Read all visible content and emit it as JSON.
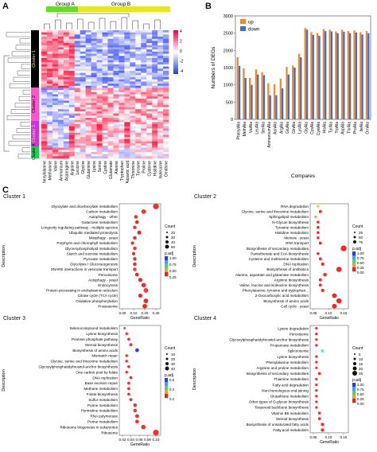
{
  "panels": {
    "a": "A",
    "b": "B",
    "c": "C"
  },
  "heatmap": {
    "group_a": "Group A",
    "group_b": "Group B",
    "clusters": [
      "Cluster 1",
      "Cluster 2",
      "Cluster 3",
      "Cluster 4"
    ],
    "scale_ticks": [
      "4",
      "2",
      "0",
      "-2",
      "-4"
    ],
    "samples": [
      "Phenylalanine",
      "Methionine",
      "Valine",
      "Ammonium",
      "Asparagine",
      "Arginine",
      "Leucine",
      "Glycine",
      "Glutamine",
      "Lysine",
      "Serine",
      "Cystine",
      "Glutamate",
      "Alanine",
      "Tryptophan",
      "Aspartic acid",
      "Threonine",
      "Tyrosine",
      "Proline",
      "Cysteine",
      "Histidine",
      "Isoleucine",
      "Ornithine"
    ]
  },
  "chart_data": [
    {
      "type": "bar",
      "title": "",
      "xlabel": "Compares",
      "ylabel": "Numbers of DEGs",
      "ylim": [
        0,
        3000
      ],
      "yticks": [
        0,
        500,
        1000,
        1500,
        2000,
        2500,
        3000
      ],
      "legend_position": "top-right",
      "categories": [
        "PhenylAla",
        "MethAla",
        "ValAla",
        "LeuAla",
        "SerAla",
        "AmmoniumAla",
        "AsnAla",
        "ArgAla",
        "GluAla",
        "GlnAla",
        "LysAla",
        "GlyAla",
        "CysAla",
        "CystAla",
        "HisAla",
        "TyrAla",
        "TrpAla",
        "AspAla",
        "ThrAla",
        "ProAla",
        "IleAla",
        "OrnAla"
      ],
      "series": [
        {
          "name": "up",
          "color": "#f08a2e",
          "values": [
            1800,
            1480,
            1200,
            1450,
            1370,
            1050,
            1020,
            1180,
            1520,
            1560,
            1900,
            2650,
            2530,
            2500,
            2620,
            2600,
            2550,
            2600,
            2560,
            2580,
            2530,
            2560
          ]
        },
        {
          "name": "down",
          "color": "#3b6fd6",
          "values": [
            1550,
            1200,
            1000,
            1300,
            1280,
            700,
            700,
            900,
            1300,
            1500,
            1800,
            2600,
            2450,
            2420,
            2560,
            2550,
            2500,
            2540,
            2500,
            2520,
            2460,
            2500
          ]
        }
      ]
    },
    {
      "type": "scatter",
      "title": "Cluster 1",
      "xlabel": "GeneRatio",
      "ylabel": "Description",
      "xticks": [
        "0.00",
        "0.10",
        "0.20",
        "0.30"
      ],
      "size_legend": {
        "title": "Count",
        "values": [
          "20",
          "30",
          "40",
          "50"
        ]
      },
      "color_legend": {
        "title": "p.adj",
        "values": [
          "1.00",
          "0.75",
          "0.50",
          "0.25"
        ]
      },
      "terms": [
        "Glyoxylate and dicarboxylate metabolism",
        "Carbon metabolism",
        "Autophagy - other",
        "Galactose metabolism",
        "Longevity regulating pathway - multiple species",
        "Ubiquitin mediated proteolysis",
        "Mitophagy - yeast",
        "Porphyrin and chlorophyll metabolism",
        "Glycerophospholipid metabolism",
        "Starch and sucrose metabolism",
        "Pyruvate metabolism",
        "Glycolysis / Gluconeogenesis",
        "SNARE interactions in vesicular transport",
        "Peroxisome",
        "Autophagy - yeast",
        "Endocytosis",
        "Protein processing in endoplasmic reticulum",
        "Citrate cycle (TCA cycle)",
        "Oxidative phosphorylation",
        "Proteasome"
      ],
      "gene_ratio": [
        0.3,
        0.19,
        0.12,
        0.13,
        0.11,
        0.15,
        0.11,
        0.09,
        0.11,
        0.1,
        0.11,
        0.11,
        0.11,
        0.13,
        0.16,
        0.19,
        0.21,
        0.16,
        0.21,
        0.2
      ]
    },
    {
      "type": "scatter",
      "title": "Cluster 2",
      "xlabel": "GeneRatio",
      "ylabel": "Description",
      "xticks": [
        "0.05",
        "0.10",
        "0.15"
      ],
      "size_legend": {
        "title": "Count",
        "values": [
          "25",
          "50",
          "75"
        ]
      },
      "color_legend": {
        "title": "p.adj",
        "values": [
          "1.00",
          "0.75",
          "0.50",
          "0.25",
          "0.00"
        ]
      },
      "terms": [
        "RNA degradation",
        "Glycine, serine and threonine metabolism",
        "Sphingolipid metabolism",
        "N-Glycan biosynthesis",
        "Tyrosine metabolism",
        "Histidine metabolism",
        "Meiosis - yeast",
        "RNA transport",
        "Biosynthesis of secondary metabolites",
        "Pantothenate and CoA biosynthesis",
        "Cysteine and methionine metabolism",
        "DNA replication",
        "Biosynthesis of antibiotics",
        "Alanine, aspartate and glutamate metabolism",
        "Arginine biosynthesis",
        "Valine, leucine and isoleucine biosynthesis",
        "Phenylalanine, tyrosine and tryptophan...",
        "2-Oxocarboxylic acid metabolism",
        "Biosynthesis of amino acids",
        "Cell cycle - yeast"
      ],
      "gene_ratio": [
        0.07,
        0.08,
        0.06,
        0.07,
        0.07,
        0.07,
        0.07,
        0.08,
        0.18,
        0.07,
        0.08,
        0.09,
        0.16,
        0.1,
        0.08,
        0.08,
        0.09,
        0.14,
        0.16,
        0.14
      ]
    },
    {
      "type": "scatter",
      "title": "Cluster 3",
      "xlabel": "GeneRatio",
      "ylabel": "Description",
      "xticks": [
        "0.02",
        "0.04",
        "0.06",
        "0.08",
        "0.10"
      ],
      "size_legend": {
        "title": "Count",
        "values": [
          "10",
          "20",
          "30",
          "40"
        ]
      },
      "color_legend": {
        "title": "p.adj",
        "values": [
          "0.6",
          "0.4",
          "0.2"
        ]
      },
      "terms": [
        "Selenocompound metabolism",
        "Lysine biosynthesis",
        "Pentose phosphate pathway",
        "Steroid biosynthesis",
        "Biosynthesis of amino acids",
        "Mismatch repair",
        "Glycine, serine and threonine metabolism",
        "Glycosylphosphatidylinositol-anchor biosynthesis",
        "One carbon pool by folate",
        "DNA replication",
        "Base excision repair",
        "Methane metabolism",
        "Folate biosynthesis",
        "Sulfur metabolism",
        "Purine metabolism",
        "Pyrimidine metabolism",
        "RNA polymerase",
        "Purine metabolism",
        "Ribosome biogenesis in eukaryotes",
        "Ribosome"
      ],
      "gene_ratio": [
        0.025,
        0.03,
        0.035,
        0.04,
        0.055,
        0.03,
        0.03,
        0.035,
        0.03,
        0.04,
        0.035,
        0.035,
        0.035,
        0.04,
        0.05,
        0.05,
        0.055,
        0.055,
        0.07,
        0.1
      ]
    },
    {
      "type": "scatter",
      "title": "Cluster 4",
      "xlabel": "GeneRatio",
      "ylabel": "Description",
      "xticks": [
        "0.05",
        "0.10",
        "0.15"
      ],
      "size_legend": {
        "title": "Count",
        "values": [
          "5",
          "10",
          "15",
          "20",
          "25"
        ]
      },
      "color_legend": {
        "title": "p.adj",
        "values": [
          "1.00",
          "0.75",
          "0.50",
          "0.25",
          "0.00"
        ]
      },
      "terms": [
        "Lysine degradation",
        "Peroxisome",
        "Glycosylphosphatidylinositol-anchor biosynthesis",
        "Propanoate metabolism",
        "Spliceosome",
        "Lysine biosynthesis",
        "Phenylalanine metabolism",
        "Arginine and proline metabolism",
        "Biosynthesis of secondary metabolites",
        "Thiamine metabolism",
        "Fatty acid degradation",
        "Non-homologous end-joining",
        "Glutathione metabolism",
        "Other types of O-glycan biosynthesis",
        "Terpenoid backbone biosynthesis",
        "Vitamin B6 metabolism",
        "Steroid biosynthesis",
        "Biosynthesis of unsaturated fatty acids",
        "Fatty acid metabolism"
      ],
      "gene_ratio": [
        0.06,
        0.06,
        0.06,
        0.06,
        0.08,
        0.06,
        0.06,
        0.06,
        0.07,
        0.06,
        0.06,
        0.06,
        0.06,
        0.06,
        0.06,
        0.07,
        0.07,
        0.08,
        0.08
      ]
    }
  ]
}
